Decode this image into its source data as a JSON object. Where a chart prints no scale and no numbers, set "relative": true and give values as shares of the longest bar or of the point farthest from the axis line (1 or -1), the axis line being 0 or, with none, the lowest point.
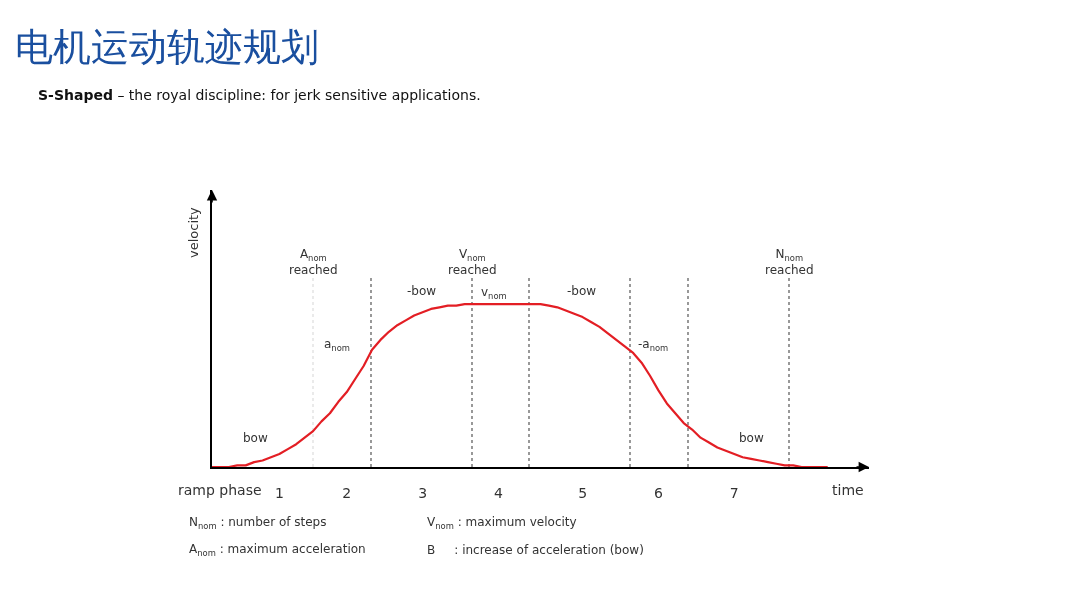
{
  "chart_data": {
    "type": "line",
    "title": "电机运动轨迹规划",
    "subtitle": "S-Shaped – the royal discipline: for jerk sensitive applications.",
    "xlabel": "time",
    "ylabel": "velocity",
    "relative": true,
    "categories": [
      null,
      null,
      null,
      null,
      null,
      null,
      null,
      null,
      "1",
      null,
      null,
      null,
      null,
      null,
      null,
      null,
      "2",
      null,
      null,
      null,
      null,
      null,
      null,
      null,
      null,
      "3",
      null,
      null,
      null,
      null,
      null,
      null,
      null,
      null,
      "4",
      null,
      null,
      null,
      null,
      null,
      null,
      null,
      null,
      null,
      "5",
      null,
      null,
      null,
      null,
      null,
      null,
      null,
      null,
      "6",
      null,
      null,
      null,
      null,
      null,
      null,
      null,
      null,
      "7",
      null,
      null,
      null,
      null,
      null,
      null,
      null,
      null,
      null,
      null,
      null,
      null,
      null,
      null,
      null,
      null
    ],
    "values": [
      0,
      0,
      0,
      0.01,
      0.01,
      0.03,
      0.04,
      0.06,
      0.08,
      0.11,
      0.14,
      0.18,
      0.22,
      0.28,
      0.33,
      0.4,
      0.46,
      0.54,
      0.62,
      0.72,
      0.78,
      0.83,
      0.87,
      0.9,
      0.93,
      0.95,
      0.97,
      0.98,
      0.99,
      0.99,
      1,
      1,
      1,
      1,
      1,
      1,
      1,
      1,
      1,
      1,
      0.99,
      0.98,
      0.96,
      0.94,
      0.92,
      0.89,
      0.86,
      0.82,
      0.78,
      0.74,
      0.7,
      0.64,
      0.56,
      0.47,
      0.39,
      0.33,
      0.27,
      0.23,
      0.18,
      0.15,
      0.12,
      0.1,
      0.08,
      0.06,
      0.05,
      0.04,
      0.03,
      0.02,
      0.01,
      0.01,
      0,
      0,
      0,
      0,
      null,
      null,
      null,
      null,
      null
    ],
    "color": "#e31e24",
    "line_style": "solid",
    "annotations": [
      "A$_{nom}$\nreached",
      "V$_{nom}$\nreached",
      "N$_{nom}$\nreached",
      "-bow",
      "v$_{nom}$",
      "-bow",
      "a$_{nom}$",
      "-a$_{nom}$",
      "bow",
      "bow",
      "ramp phase",
      "N$_{nom}$ : number of steps",
      "V$_{nom}$ : maximum velocity",
      "A$_{nom}$ : maximum acceleration",
      "B     : increase of acceleration (bow)"
    ]
  }
}
